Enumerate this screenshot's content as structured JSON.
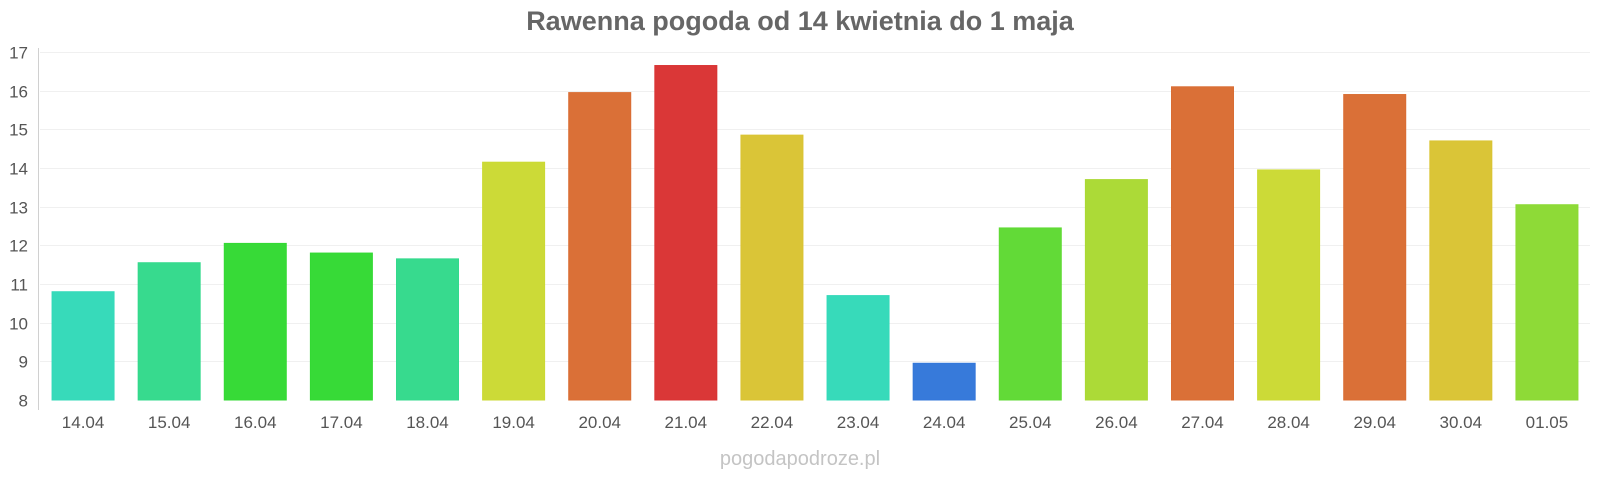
{
  "chart_data": {
    "type": "bar",
    "title": "Rawenna pogoda od 14 kwietnia do 1 maja",
    "xlabel": "",
    "ylabel": "",
    "categories": [
      "14.04",
      "15.04",
      "16.04",
      "17.04",
      "18.04",
      "19.04",
      "20.04",
      "21.04",
      "22.04",
      "23.04",
      "24.04",
      "25.04",
      "26.04",
      "27.04",
      "28.04",
      "29.04",
      "30.04",
      "01.05"
    ],
    "values": [
      10.8,
      11.55,
      12.05,
      11.8,
      11.65,
      14.15,
      15.95,
      16.65,
      14.85,
      10.7,
      8.95,
      12.45,
      13.7,
      16.1,
      13.95,
      15.9,
      14.7,
      13.05
    ],
    "bar_colors": [
      "#33d9b9",
      "#33d98c",
      "#33d933",
      "#33d933",
      "#33d98c",
      "#cbd933",
      "#d96d33",
      "#d93333",
      "#d9c433",
      "#33d9b9",
      "#3377d9",
      "#5fd933",
      "#aad933",
      "#d96d33",
      "#cbd933",
      "#d96d33",
      "#d9c433",
      "#8cd933"
    ],
    "ylim": [
      8,
      17
    ],
    "yticks": [
      8,
      9,
      10,
      11,
      12,
      13,
      14,
      15,
      16,
      17
    ],
    "grid": true,
    "legend": "none"
  },
  "watermark": "pogodapodroze.pl"
}
